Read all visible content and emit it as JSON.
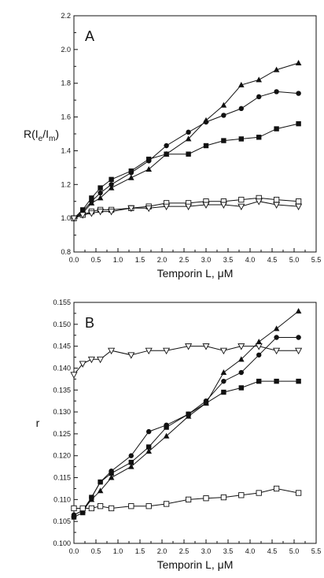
{
  "chart_data": [
    {
      "type": "line",
      "panel_label": "A",
      "xlabel": "Temporin L, μM",
      "ylabel": "R(I_e/I_m)",
      "xlim": [
        0.0,
        5.5
      ],
      "ylim": [
        0.8,
        2.2
      ],
      "xticks": [
        "0.0",
        "0.5",
        "1.0",
        "1.5",
        "2.0",
        "2.5",
        "3.0",
        "3.5",
        "4.0",
        "4.5",
        "5.0",
        "5.5"
      ],
      "yticks": [
        "0.8",
        "1.0",
        "1.2",
        "1.4",
        "1.6",
        "1.8",
        "2.0",
        "2.2"
      ],
      "series": [
        {
          "marker": "triangle-filled",
          "x": [
            0,
            0.2,
            0.4,
            0.6,
            0.85,
            1.3,
            1.7,
            2.1,
            2.6,
            3.0,
            3.4,
            3.8,
            4.2,
            4.6,
            5.1
          ],
          "y": [
            1.0,
            1.03,
            1.09,
            1.12,
            1.18,
            1.24,
            1.29,
            1.38,
            1.47,
            1.58,
            1.67,
            1.79,
            1.82,
            1.88,
            1.92
          ]
        },
        {
          "marker": "circle-filled",
          "x": [
            0,
            0.2,
            0.4,
            0.6,
            0.85,
            1.3,
            1.7,
            2.1,
            2.6,
            3.0,
            3.4,
            3.8,
            4.2,
            4.6,
            5.1
          ],
          "y": [
            1.0,
            1.04,
            1.1,
            1.15,
            1.2,
            1.27,
            1.34,
            1.43,
            1.51,
            1.57,
            1.61,
            1.65,
            1.72,
            1.75,
            1.74
          ]
        },
        {
          "marker": "square-filled",
          "x": [
            0,
            0.2,
            0.4,
            0.6,
            0.85,
            1.3,
            1.7,
            2.1,
            2.6,
            3.0,
            3.4,
            3.8,
            4.2,
            4.6,
            5.1
          ],
          "y": [
            1.0,
            1.05,
            1.12,
            1.18,
            1.23,
            1.28,
            1.35,
            1.38,
            1.38,
            1.43,
            1.46,
            1.47,
            1.48,
            1.53,
            1.56
          ]
        },
        {
          "marker": "square-open",
          "x": [
            0,
            0.2,
            0.4,
            0.6,
            0.85,
            1.3,
            1.7,
            2.1,
            2.6,
            3.0,
            3.4,
            3.8,
            4.2,
            4.6,
            5.1
          ],
          "y": [
            1.0,
            1.02,
            1.04,
            1.05,
            1.05,
            1.06,
            1.07,
            1.09,
            1.09,
            1.1,
            1.1,
            1.11,
            1.12,
            1.11,
            1.1
          ]
        },
        {
          "marker": "triangle-down-open",
          "x": [
            0,
            0.2,
            0.4,
            0.6,
            0.85,
            1.3,
            1.7,
            2.1,
            2.6,
            3.0,
            3.4,
            3.8,
            4.2,
            4.6,
            5.1
          ],
          "y": [
            1.0,
            1.02,
            1.03,
            1.04,
            1.04,
            1.06,
            1.06,
            1.07,
            1.07,
            1.08,
            1.08,
            1.07,
            1.1,
            1.08,
            1.07
          ]
        }
      ]
    },
    {
      "type": "line",
      "panel_label": "B",
      "xlabel": "Temporin L, μM",
      "ylabel": "r",
      "xlim": [
        0.0,
        5.5
      ],
      "ylim": [
        0.1,
        0.155
      ],
      "xticks": [
        "0.0",
        "0.5",
        "1.0",
        "1.5",
        "2.0",
        "2.5",
        "3.0",
        "3.5",
        "4.0",
        "4.5",
        "5.0",
        "5.5"
      ],
      "yticks": [
        "0.100",
        "0.105",
        "0.110",
        "0.115",
        "0.120",
        "0.125",
        "0.130",
        "0.135",
        "0.140",
        "0.145",
        "0.150",
        "0.155"
      ],
      "series": [
        {
          "marker": "triangle-filled",
          "x": [
            0,
            0.2,
            0.4,
            0.6,
            0.85,
            1.3,
            1.7,
            2.1,
            2.6,
            3.0,
            3.4,
            3.8,
            4.2,
            4.6,
            5.1
          ],
          "y": [
            0.1065,
            0.1075,
            0.11,
            0.112,
            0.115,
            0.1175,
            0.121,
            0.1245,
            0.129,
            0.132,
            0.139,
            0.142,
            0.146,
            0.149,
            0.153
          ]
        },
        {
          "marker": "circle-filled",
          "x": [
            0,
            0.2,
            0.4,
            0.6,
            0.85,
            1.3,
            1.7,
            2.1,
            2.6,
            3.0,
            3.4,
            3.8,
            4.2,
            4.6,
            5.1
          ],
          "y": [
            0.1065,
            0.1075,
            0.1105,
            0.114,
            0.1165,
            0.12,
            0.1255,
            0.127,
            0.1295,
            0.1325,
            0.137,
            0.139,
            0.143,
            0.147,
            0.147
          ]
        },
        {
          "marker": "square-filled",
          "x": [
            0,
            0.2,
            0.4,
            0.6,
            0.85,
            1.3,
            1.7,
            2.1,
            2.6,
            3.0,
            3.4,
            3.8,
            4.2,
            4.6,
            5.1
          ],
          "y": [
            0.106,
            0.107,
            0.1105,
            0.114,
            0.116,
            0.1185,
            0.122,
            0.1265,
            0.1295,
            0.132,
            0.1345,
            0.1355,
            0.137,
            0.137,
            0.137
          ]
        },
        {
          "marker": "square-open",
          "x": [
            0,
            0.2,
            0.4,
            0.6,
            0.85,
            1.3,
            1.7,
            2.1,
            2.6,
            3.0,
            3.4,
            3.8,
            4.2,
            4.6,
            5.1
          ],
          "y": [
            0.108,
            0.108,
            0.108,
            0.1085,
            0.108,
            0.1085,
            0.1085,
            0.109,
            0.11,
            0.1103,
            0.1105,
            0.111,
            0.1115,
            0.1125,
            0.1115
          ]
        },
        {
          "marker": "triangle-down-open",
          "x": [
            0,
            0.2,
            0.4,
            0.6,
            0.85,
            1.3,
            1.7,
            2.1,
            2.6,
            3.0,
            3.4,
            3.8,
            4.2,
            4.6,
            5.1
          ],
          "y": [
            0.1385,
            0.141,
            0.142,
            0.142,
            0.144,
            0.143,
            0.144,
            0.144,
            0.145,
            0.145,
            0.144,
            0.145,
            0.145,
            0.144,
            0.144
          ]
        }
      ]
    }
  ]
}
